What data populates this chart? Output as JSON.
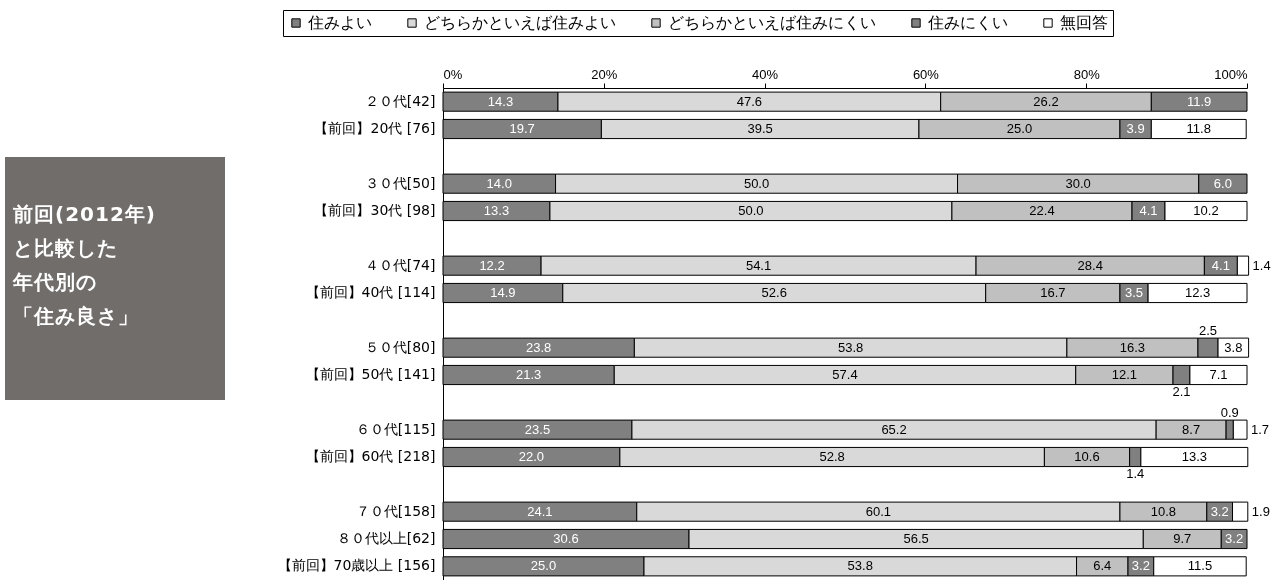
{
  "chart_data": {
    "type": "bar",
    "orientation": "horizontal",
    "stacked": true,
    "annotations": [
      "前回(2012年)",
      "と比較した",
      "年代別の",
      "「住み良さ」"
    ],
    "categories": [
      "２０代[42]",
      "【前回】20代 [76]",
      null,
      "３０代[50]",
      "【前回】30代 [98]",
      null,
      "４０代[74]",
      "【前回】40代 [114]",
      null,
      "５０代[80]",
      "【前回】50代 [141]",
      null,
      "６０代[115]",
      "【前回】60代 [218]",
      null,
      "７０代[158]",
      "８０代以上[62]",
      "【前回】70歳以上 [156]"
    ],
    "series": [
      {
        "name": "住みよい",
        "color": "#808080",
        "values": [
          14.3,
          19.7,
          null,
          14.0,
          13.3,
          null,
          12.2,
          14.9,
          null,
          23.8,
          21.3,
          null,
          23.5,
          22.0,
          null,
          24.1,
          30.6,
          25.0
        ],
        "value_labels": [
          "14.3",
          "19.7",
          null,
          "14.0",
          "13.3",
          null,
          "12.2",
          "14.9",
          null,
          "23.8",
          "21.3",
          null,
          "23.5",
          "22.0",
          null,
          "24.1",
          "30.6",
          "25.0"
        ]
      },
      {
        "name": "どちらかといえば住みよい",
        "color": "#d9d9d9",
        "values": [
          47.6,
          39.5,
          null,
          50.0,
          50.0,
          null,
          54.1,
          52.6,
          null,
          53.8,
          57.4,
          null,
          65.2,
          52.8,
          null,
          60.1,
          56.5,
          53.8
        ],
        "value_labels": [
          "47.6",
          "39.5",
          null,
          "50.0",
          "50.0",
          null,
          "54.1",
          "52.6",
          null,
          "53.8",
          "57.4",
          null,
          "65.2",
          "52.8",
          null,
          "60.1",
          "56.5",
          "53.8"
        ]
      },
      {
        "name": "どちらかといえば住みにくい",
        "color": "#c0c0c0",
        "values": [
          26.2,
          25.0,
          null,
          30.0,
          22.4,
          null,
          28.4,
          16.7,
          null,
          16.3,
          12.1,
          null,
          8.7,
          10.6,
          null,
          10.8,
          9.7,
          6.4
        ],
        "value_labels": [
          "26.2",
          "25.0",
          null,
          "30.0",
          "22.4",
          null,
          "28.4",
          "16.7",
          null,
          "16.3",
          "12.1",
          null,
          "8.7",
          "10.6",
          null,
          "10.8",
          "9.7",
          "6.4"
        ]
      },
      {
        "name": "住みにくい",
        "color": "#808080",
        "values": [
          11.9,
          3.9,
          null,
          6.0,
          4.1,
          null,
          4.1,
          3.5,
          null,
          2.5,
          2.1,
          null,
          0.9,
          1.4,
          null,
          3.2,
          3.2,
          3.2
        ],
        "value_labels": [
          "11.9",
          "3.9",
          null,
          "6.0",
          "4.1",
          null,
          "4.1",
          "3.5",
          null,
          "2.5",
          "2.1",
          null,
          "0.9",
          "1.4",
          null,
          "3.2",
          "3.2",
          "3.2"
        ]
      },
      {
        "name": "無回答",
        "color": "#ffffff",
        "values": [
          null,
          11.8,
          null,
          null,
          10.2,
          null,
          1.4,
          12.3,
          null,
          3.8,
          7.1,
          null,
          1.7,
          13.3,
          null,
          1.9,
          null,
          11.5
        ],
        "value_labels": [
          null,
          "11.8",
          null,
          null,
          "10.2",
          null,
          "1.4",
          "12.3",
          null,
          "3.8",
          "7.1",
          null,
          "1.7",
          "13.3",
          null,
          "1.9",
          null,
          "11.5"
        ]
      }
    ],
    "xlim": [
      0,
      100
    ],
    "xticks": [
      {
        "value": 0,
        "label": "0%"
      },
      {
        "value": 20,
        "label": "20%"
      },
      {
        "value": 40,
        "label": "40%"
      },
      {
        "value": 60,
        "label": "60%"
      },
      {
        "value": 80,
        "label": "80%"
      },
      {
        "value": 100,
        "label": "100%"
      }
    ],
    "legend": "top",
    "grid": false
  }
}
